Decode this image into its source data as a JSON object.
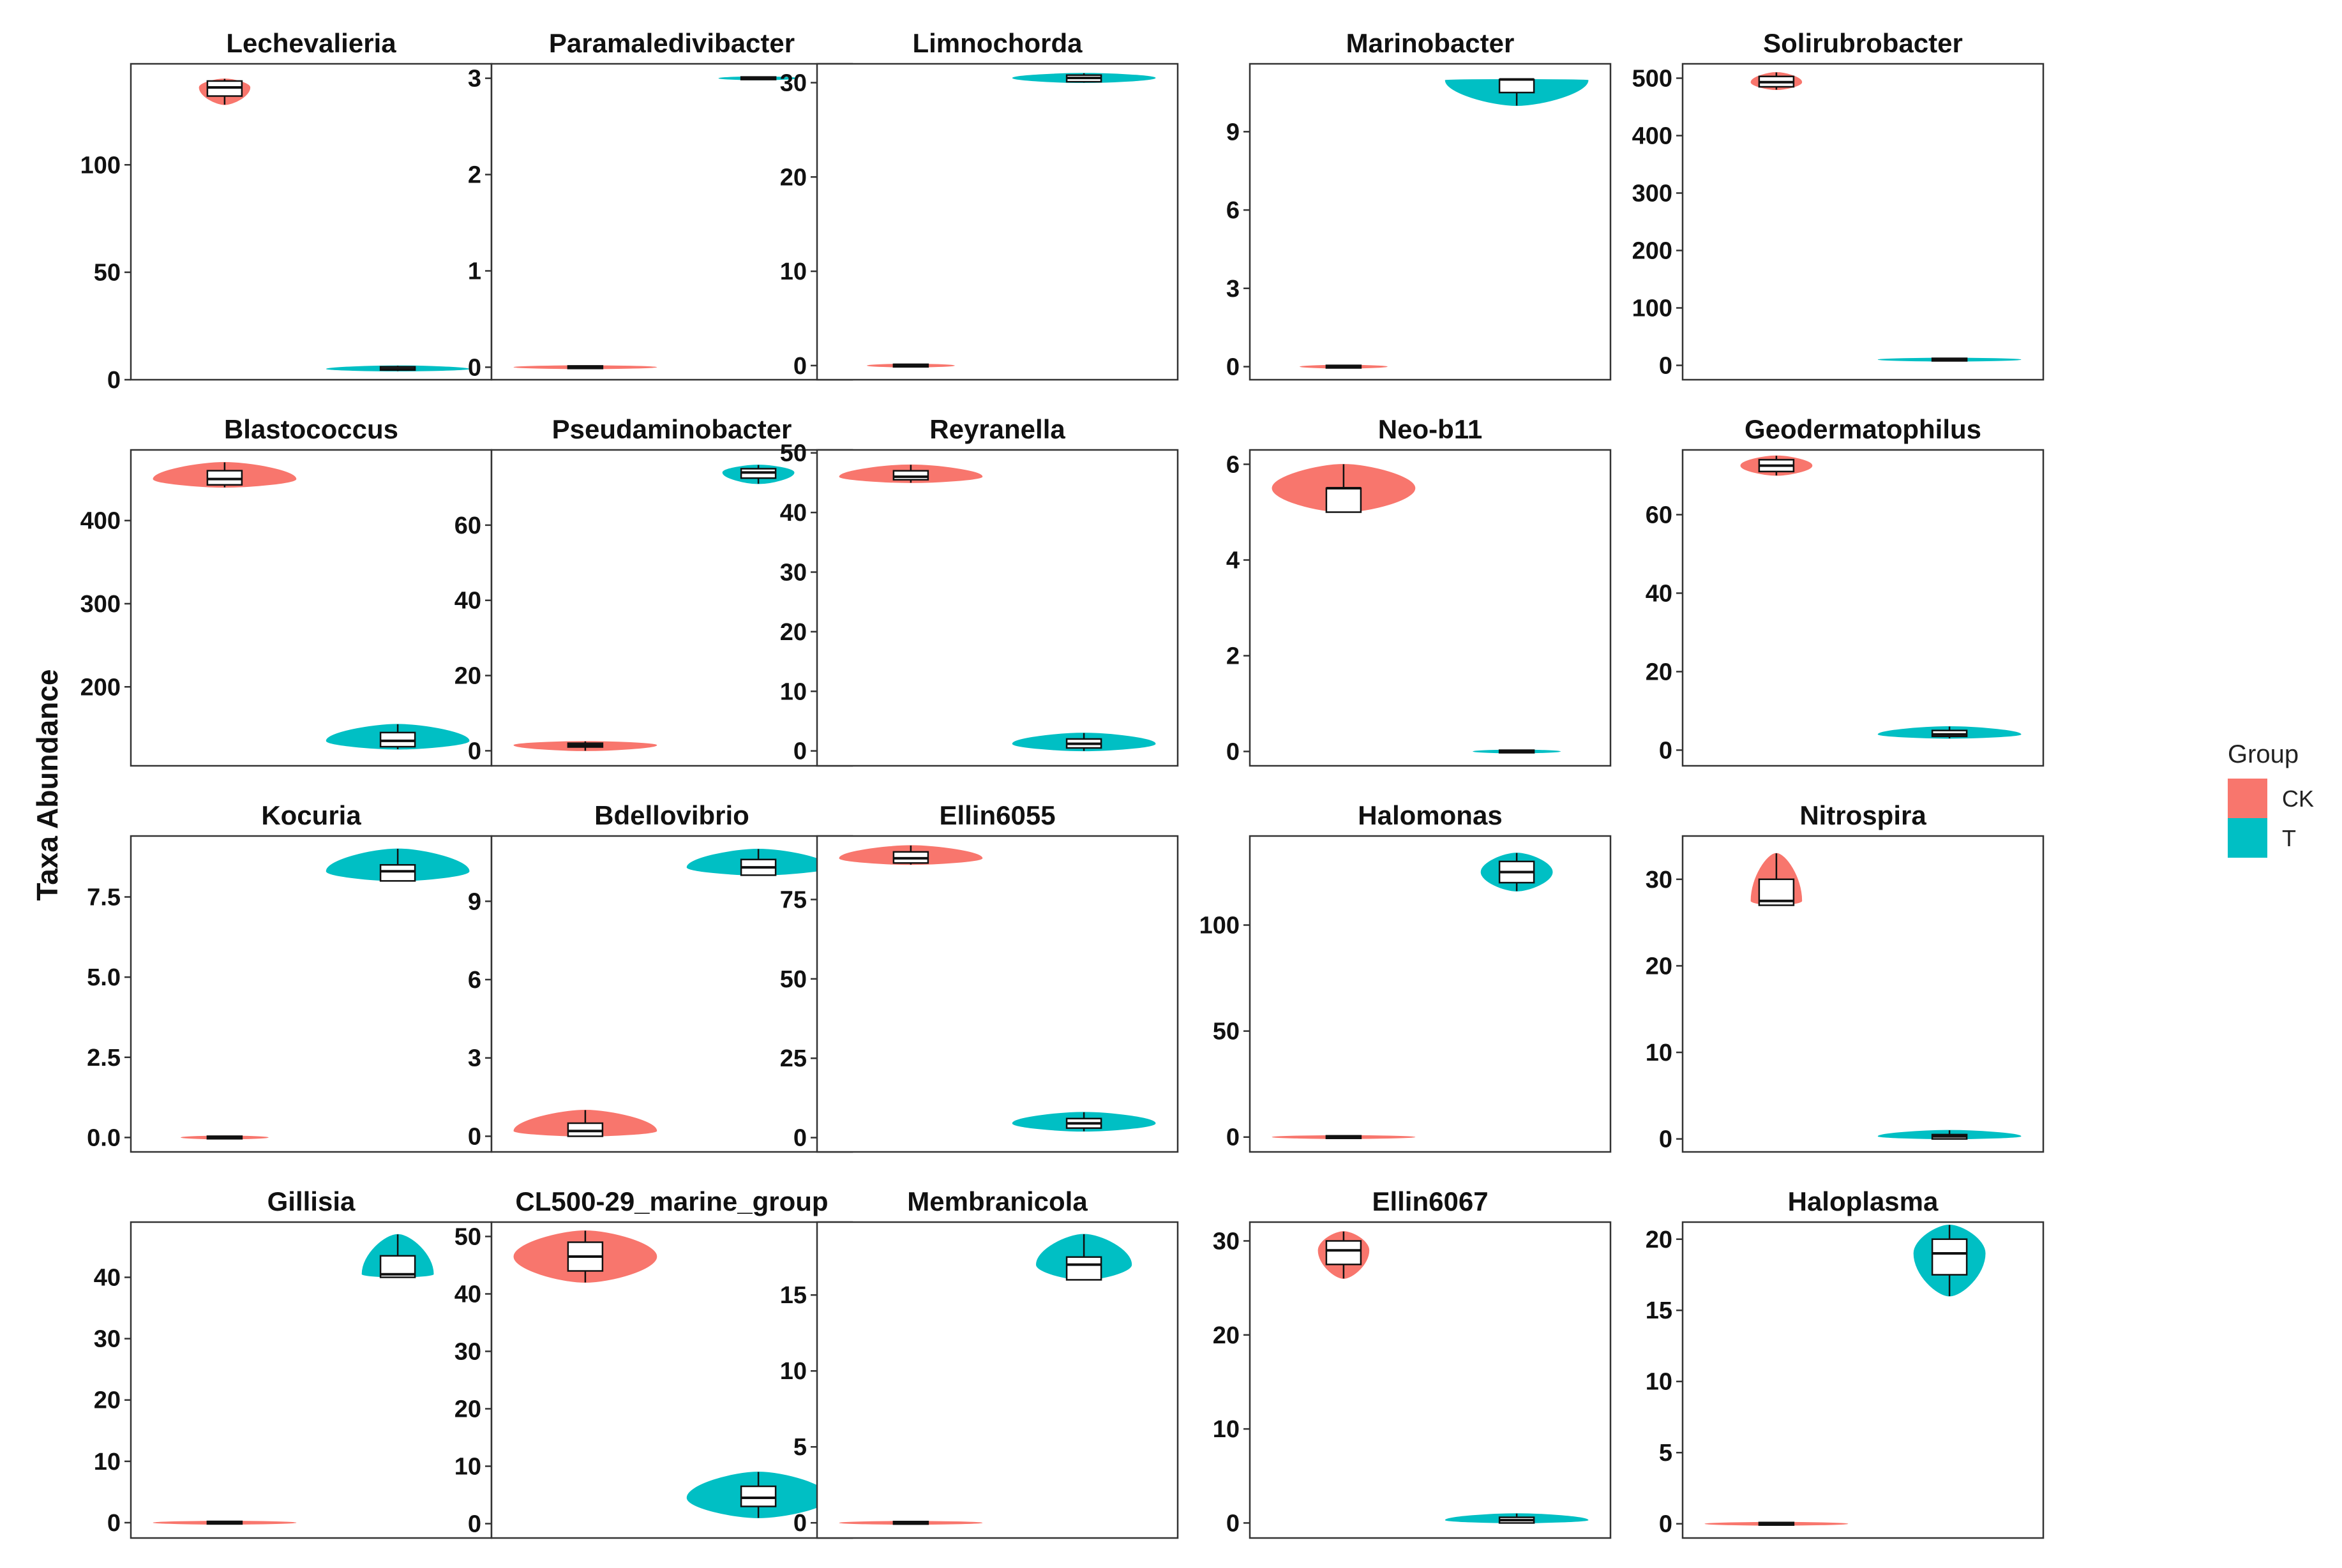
{
  "ylabel": "Taxa Abundance",
  "legend": {
    "title": "Group",
    "entries": [
      {
        "label": "CK",
        "color": "#F8766D"
      },
      {
        "label": "T",
        "color": "#00BFC4"
      }
    ]
  },
  "chart_data": [
    {
      "type": "violin",
      "title": "Lechevalieria",
      "ylim": [
        0,
        147
      ],
      "ticks": [
        0,
        50,
        100
      ],
      "tick_labels": [
        "0",
        "50",
        "100"
      ],
      "groups": [
        {
          "name": "CK",
          "min": 128,
          "q1": 132,
          "median": 136,
          "q3": 139,
          "max": 140,
          "width": 0.32
        },
        {
          "name": "T",
          "min": 4,
          "q1": 4.5,
          "median": 5,
          "q3": 6,
          "max": 6.5,
          "width": 0.9
        }
      ]
    },
    {
      "type": "violin",
      "title": "Paramaledivibacter",
      "ylim": [
        -0.13,
        3.15
      ],
      "ticks": [
        0,
        1,
        2,
        3
      ],
      "tick_labels": [
        "0",
        "1",
        "2",
        "3"
      ],
      "groups": [
        {
          "name": "CK",
          "min": 0,
          "q1": 0,
          "median": 0,
          "q3": 0,
          "max": 0,
          "width": 0.9
        },
        {
          "name": "T",
          "min": 3,
          "q1": 3,
          "median": 3,
          "q3": 3,
          "max": 3,
          "width": 0.5
        }
      ]
    },
    {
      "type": "violin",
      "title": "Limnochorda",
      "ylim": [
        -1.5,
        32
      ],
      "ticks": [
        0,
        10,
        20,
        30
      ],
      "tick_labels": [
        "0",
        "10",
        "20",
        "30"
      ],
      "groups": [
        {
          "name": "CK",
          "min": 0,
          "q1": 0,
          "median": 0,
          "q3": 0,
          "max": 0,
          "width": 0.55
        },
        {
          "name": "T",
          "min": 30,
          "q1": 30.1,
          "median": 30.5,
          "q3": 30.8,
          "max": 31,
          "width": 0.9
        }
      ]
    },
    {
      "type": "violin",
      "title": "Marinobacter",
      "ylim": [
        -0.5,
        11.6
      ],
      "ticks": [
        0,
        3,
        6,
        9
      ],
      "tick_labels": [
        "0",
        "3",
        "6",
        "9"
      ],
      "groups": [
        {
          "name": "CK",
          "min": 0,
          "q1": 0,
          "median": 0,
          "q3": 0,
          "max": 0,
          "width": 0.55
        },
        {
          "name": "T",
          "min": 10,
          "q1": 10.5,
          "median": 11,
          "q3": 11,
          "max": 11,
          "width": 0.9
        }
      ]
    },
    {
      "type": "violin",
      "title": "Solirubrobacter",
      "ylim": [
        -25,
        525
      ],
      "ticks": [
        0,
        100,
        200,
        300,
        400,
        500
      ],
      "tick_labels": [
        "0",
        "100",
        "200",
        "300",
        "400",
        "500"
      ],
      "groups": [
        {
          "name": "CK",
          "min": 480,
          "q1": 485,
          "median": 493,
          "q3": 503,
          "max": 510,
          "width": 0.32
        },
        {
          "name": "T",
          "min": 10,
          "q1": 10,
          "median": 10,
          "q3": 10,
          "max": 10,
          "width": 0.9
        }
      ]
    },
    {
      "type": "violin",
      "title": "Blastococcus",
      "ylim": [
        105,
        485
      ],
      "ticks": [
        200,
        300,
        400
      ],
      "tick_labels": [
        "200",
        "300",
        "400"
      ],
      "groups": [
        {
          "name": "CK",
          "min": 440,
          "q1": 443,
          "median": 450,
          "q3": 460,
          "max": 470,
          "width": 0.9
        },
        {
          "name": "T",
          "min": 125,
          "q1": 128,
          "median": 135,
          "q3": 145,
          "max": 155,
          "width": 0.9
        }
      ]
    },
    {
      "type": "violin",
      "title": "Pseudaminobacter",
      "ylim": [
        -4,
        80
      ],
      "ticks": [
        0,
        20,
        40,
        60
      ],
      "tick_labels": [
        "0",
        "20",
        "40",
        "60"
      ],
      "groups": [
        {
          "name": "CK",
          "min": 0,
          "q1": 1,
          "median": 1.5,
          "q3": 2,
          "max": 2.5,
          "width": 0.9
        },
        {
          "name": "T",
          "min": 71,
          "q1": 72.5,
          "median": 74,
          "q3": 75,
          "max": 76,
          "width": 0.45
        }
      ]
    },
    {
      "type": "violin",
      "title": "Reyranella",
      "ylim": [
        -2.5,
        50.5
      ],
      "ticks": [
        0,
        10,
        20,
        30,
        40,
        50
      ],
      "tick_labels": [
        "0",
        "10",
        "20",
        "30",
        "40",
        "50"
      ],
      "groups": [
        {
          "name": "CK",
          "min": 45,
          "q1": 45.5,
          "median": 46,
          "q3": 47,
          "max": 48,
          "width": 0.9
        },
        {
          "name": "T",
          "min": 0,
          "q1": 0.5,
          "median": 1.2,
          "q3": 2,
          "max": 3,
          "width": 0.9
        }
      ]
    },
    {
      "type": "violin",
      "title": "Neo-b11",
      "ylim": [
        -0.3,
        6.3
      ],
      "ticks": [
        0,
        2,
        4,
        6
      ],
      "tick_labels": [
        "0",
        "2",
        "4",
        "6"
      ],
      "groups": [
        {
          "name": "CK",
          "min": 5,
          "q1": 5,
          "median": 5.5,
          "q3": 5.5,
          "max": 6,
          "width": 0.9
        },
        {
          "name": "T",
          "min": 0,
          "q1": 0,
          "median": 0,
          "q3": 0,
          "max": 0,
          "width": 0.55
        }
      ]
    },
    {
      "type": "violin",
      "title": "Geodermatophilus",
      "ylim": [
        -4,
        76.5
      ],
      "ticks": [
        0,
        20,
        40,
        60
      ],
      "tick_labels": [
        "0",
        "20",
        "40",
        "60"
      ],
      "groups": [
        {
          "name": "CK",
          "min": 70,
          "q1": 71,
          "median": 72.5,
          "q3": 74,
          "max": 75,
          "width": 0.45
        },
        {
          "name": "T",
          "min": 3,
          "q1": 3.5,
          "median": 4,
          "q3": 5,
          "max": 6,
          "width": 0.9
        }
      ]
    },
    {
      "type": "violin",
      "title": "Kocuria",
      "ylim": [
        -0.45,
        9.4
      ],
      "ticks": [
        0,
        2.5,
        5,
        7.5
      ],
      "tick_labels": [
        "0.0",
        "2.5",
        "5.0",
        "7.5"
      ],
      "groups": [
        {
          "name": "CK",
          "min": 0,
          "q1": 0,
          "median": 0,
          "q3": 0,
          "max": 0,
          "width": 0.55
        },
        {
          "name": "T",
          "min": 8,
          "q1": 8,
          "median": 8.3,
          "q3": 8.5,
          "max": 9,
          "width": 0.9
        }
      ]
    },
    {
      "type": "violin",
      "title": "Bdellovibrio",
      "ylim": [
        -0.6,
        11.5
      ],
      "ticks": [
        0,
        3,
        6,
        9
      ],
      "tick_labels": [
        "0",
        "3",
        "6",
        "9"
      ],
      "groups": [
        {
          "name": "CK",
          "min": 0,
          "q1": 0,
          "median": 0.2,
          "q3": 0.5,
          "max": 1,
          "width": 0.9
        },
        {
          "name": "T",
          "min": 10,
          "q1": 10,
          "median": 10.3,
          "q3": 10.6,
          "max": 11,
          "width": 0.9
        }
      ]
    },
    {
      "type": "violin",
      "title": "Ellin6055",
      "ylim": [
        -4.5,
        95
      ],
      "ticks": [
        0,
        25,
        50,
        75
      ],
      "tick_labels": [
        "0",
        "25",
        "50",
        "75"
      ],
      "groups": [
        {
          "name": "CK",
          "min": 86,
          "q1": 86.5,
          "median": 88,
          "q3": 90,
          "max": 92,
          "width": 0.9
        },
        {
          "name": "T",
          "min": 2,
          "q1": 3,
          "median": 4.5,
          "q3": 6,
          "max": 8,
          "width": 0.9
        }
      ]
    },
    {
      "type": "violin",
      "title": "Halomonas",
      "ylim": [
        -7,
        142
      ],
      "ticks": [
        0,
        50,
        100
      ],
      "tick_labels": [
        "0",
        "50",
        "100"
      ],
      "groups": [
        {
          "name": "CK",
          "min": 0,
          "q1": 0,
          "median": 0,
          "q3": 0,
          "max": 0,
          "width": 0.9
        },
        {
          "name": "T",
          "min": 116,
          "q1": 120,
          "median": 125,
          "q3": 130,
          "max": 134,
          "width": 0.45
        }
      ]
    },
    {
      "type": "violin",
      "title": "Nitrospira",
      "ylim": [
        -1.5,
        35
      ],
      "ticks": [
        0,
        10,
        20,
        30
      ],
      "tick_labels": [
        "0",
        "10",
        "20",
        "30"
      ],
      "groups": [
        {
          "name": "CK",
          "min": 27,
          "q1": 27,
          "median": 27.5,
          "q3": 30,
          "max": 33,
          "width": 0.32
        },
        {
          "name": "T",
          "min": 0,
          "q1": 0,
          "median": 0.3,
          "q3": 0.5,
          "max": 1,
          "width": 0.9
        }
      ]
    },
    {
      "type": "violin",
      "title": "Gillisia",
      "ylim": [
        -2.5,
        49
      ],
      "ticks": [
        0,
        10,
        20,
        30,
        40
      ],
      "tick_labels": [
        "0",
        "10",
        "20",
        "30",
        "40"
      ],
      "groups": [
        {
          "name": "CK",
          "min": 0,
          "q1": 0,
          "median": 0,
          "q3": 0,
          "max": 0,
          "width": 0.9
        },
        {
          "name": "T",
          "min": 40,
          "q1": 40,
          "median": 40.5,
          "q3": 43.5,
          "max": 47,
          "width": 0.45
        }
      ]
    },
    {
      "type": "violin",
      "title": "CL500-29_marine_group",
      "ylim": [
        -2.5,
        52.5
      ],
      "ticks": [
        0,
        10,
        20,
        30,
        40,
        50
      ],
      "tick_labels": [
        "0",
        "10",
        "20",
        "30",
        "40",
        "50"
      ],
      "groups": [
        {
          "name": "CK",
          "min": 42,
          "q1": 44,
          "median": 46.5,
          "q3": 49,
          "max": 51,
          "width": 0.9
        },
        {
          "name": "T",
          "min": 1,
          "q1": 3,
          "median": 4.5,
          "q3": 6.5,
          "max": 9,
          "width": 0.9
        }
      ]
    },
    {
      "type": "violin",
      "title": "Membranicola",
      "ylim": [
        -1,
        19.8
      ],
      "ticks": [
        0,
        5,
        10,
        15
      ],
      "tick_labels": [
        "0",
        "5",
        "10",
        "15"
      ],
      "groups": [
        {
          "name": "CK",
          "min": 0,
          "q1": 0,
          "median": 0,
          "q3": 0,
          "max": 0,
          "width": 0.9
        },
        {
          "name": "T",
          "min": 16,
          "q1": 16,
          "median": 17,
          "q3": 17.5,
          "max": 19,
          "width": 0.6
        }
      ]
    },
    {
      "type": "violin",
      "title": "Ellin6067",
      "ylim": [
        -1.6,
        32
      ],
      "ticks": [
        0,
        10,
        20,
        30
      ],
      "tick_labels": [
        "0",
        "10",
        "20",
        "30"
      ],
      "groups": [
        {
          "name": "CK",
          "min": 26,
          "q1": 27.5,
          "median": 29,
          "q3": 30,
          "max": 31,
          "width": 0.32
        },
        {
          "name": "T",
          "min": 0,
          "q1": 0,
          "median": 0.3,
          "q3": 0.6,
          "max": 1,
          "width": 0.9
        }
      ]
    },
    {
      "type": "violin",
      "title": "Haloplasma",
      "ylim": [
        -1,
        21.2
      ],
      "ticks": [
        0,
        5,
        10,
        15,
        20
      ],
      "tick_labels": [
        "0",
        "5",
        "10",
        "15",
        "20"
      ],
      "groups": [
        {
          "name": "CK",
          "min": 0,
          "q1": 0,
          "median": 0,
          "q3": 0,
          "max": 0,
          "width": 0.9
        },
        {
          "name": "T",
          "min": 16,
          "q1": 17.5,
          "median": 19,
          "q3": 20,
          "max": 21,
          "width": 0.45
        }
      ]
    }
  ]
}
